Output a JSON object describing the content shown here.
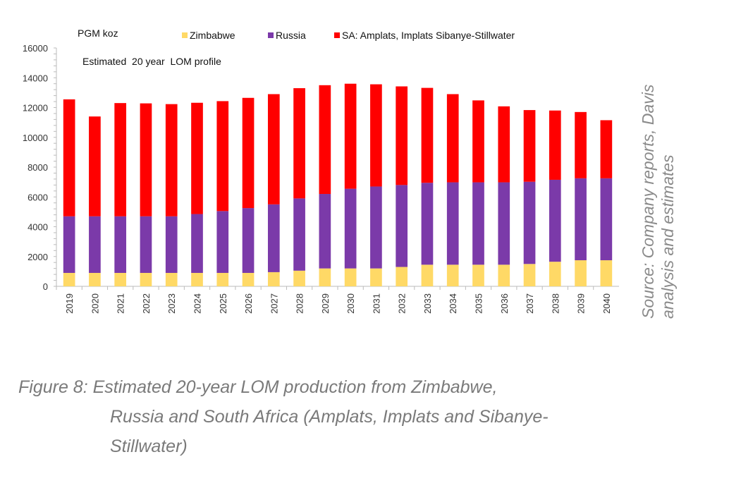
{
  "chart_data": {
    "type": "bar",
    "stacked": true,
    "unit_label": "PGM koz",
    "subtitle": "Estimated  20 year  LOM profile",
    "categories": [
      "2019",
      "2020",
      "2021",
      "2022",
      "2023",
      "2024",
      "2025",
      "2026",
      "2027",
      "2028",
      "2029",
      "2030",
      "2031",
      "2032",
      "2033",
      "2034",
      "2035",
      "2036",
      "2037",
      "2038",
      "2039",
      "2040"
    ],
    "series": [
      {
        "name": "Zimbabwe",
        "color": "#ffd966",
        "values": [
          900,
          900,
          900,
          900,
          900,
          900,
          900,
          900,
          950,
          1050,
          1200,
          1200,
          1200,
          1300,
          1450,
          1450,
          1450,
          1450,
          1500,
          1650,
          1750,
          1750
        ]
      },
      {
        "name": "Russia",
        "color": "#7b3aa9",
        "values": [
          3800,
          3800,
          3800,
          3800,
          3800,
          3950,
          4150,
          4350,
          4550,
          4850,
          5000,
          5350,
          5500,
          5500,
          5500,
          5530,
          5530,
          5530,
          5520,
          5500,
          5500,
          5500
        ]
      },
      {
        "name": "SA: Amplats, Implats Sibanye-Stillwater",
        "color": "#ff0000",
        "values": [
          7850,
          6700,
          7600,
          7580,
          7530,
          7470,
          7380,
          7400,
          7400,
          7400,
          7300,
          7050,
          6860,
          6620,
          6370,
          5920,
          5500,
          5100,
          4810,
          4650,
          4450,
          3900
        ]
      }
    ],
    "yticks": [
      "0",
      "2000",
      "4000",
      "6000",
      "8000",
      "10000",
      "12000",
      "14000",
      "16000"
    ],
    "ylim": [
      0,
      16000
    ],
    "grid": false,
    "legend": "top"
  },
  "source": "Source: Company reports, Davis analysis and estimates",
  "caption": {
    "line1": "Figure 8: Estimated 20-year LOM production from Zimbabwe,",
    "line2": "Russia and South Africa (Amplats, Implats and Sibanye-",
    "line3": "Stillwater)"
  }
}
